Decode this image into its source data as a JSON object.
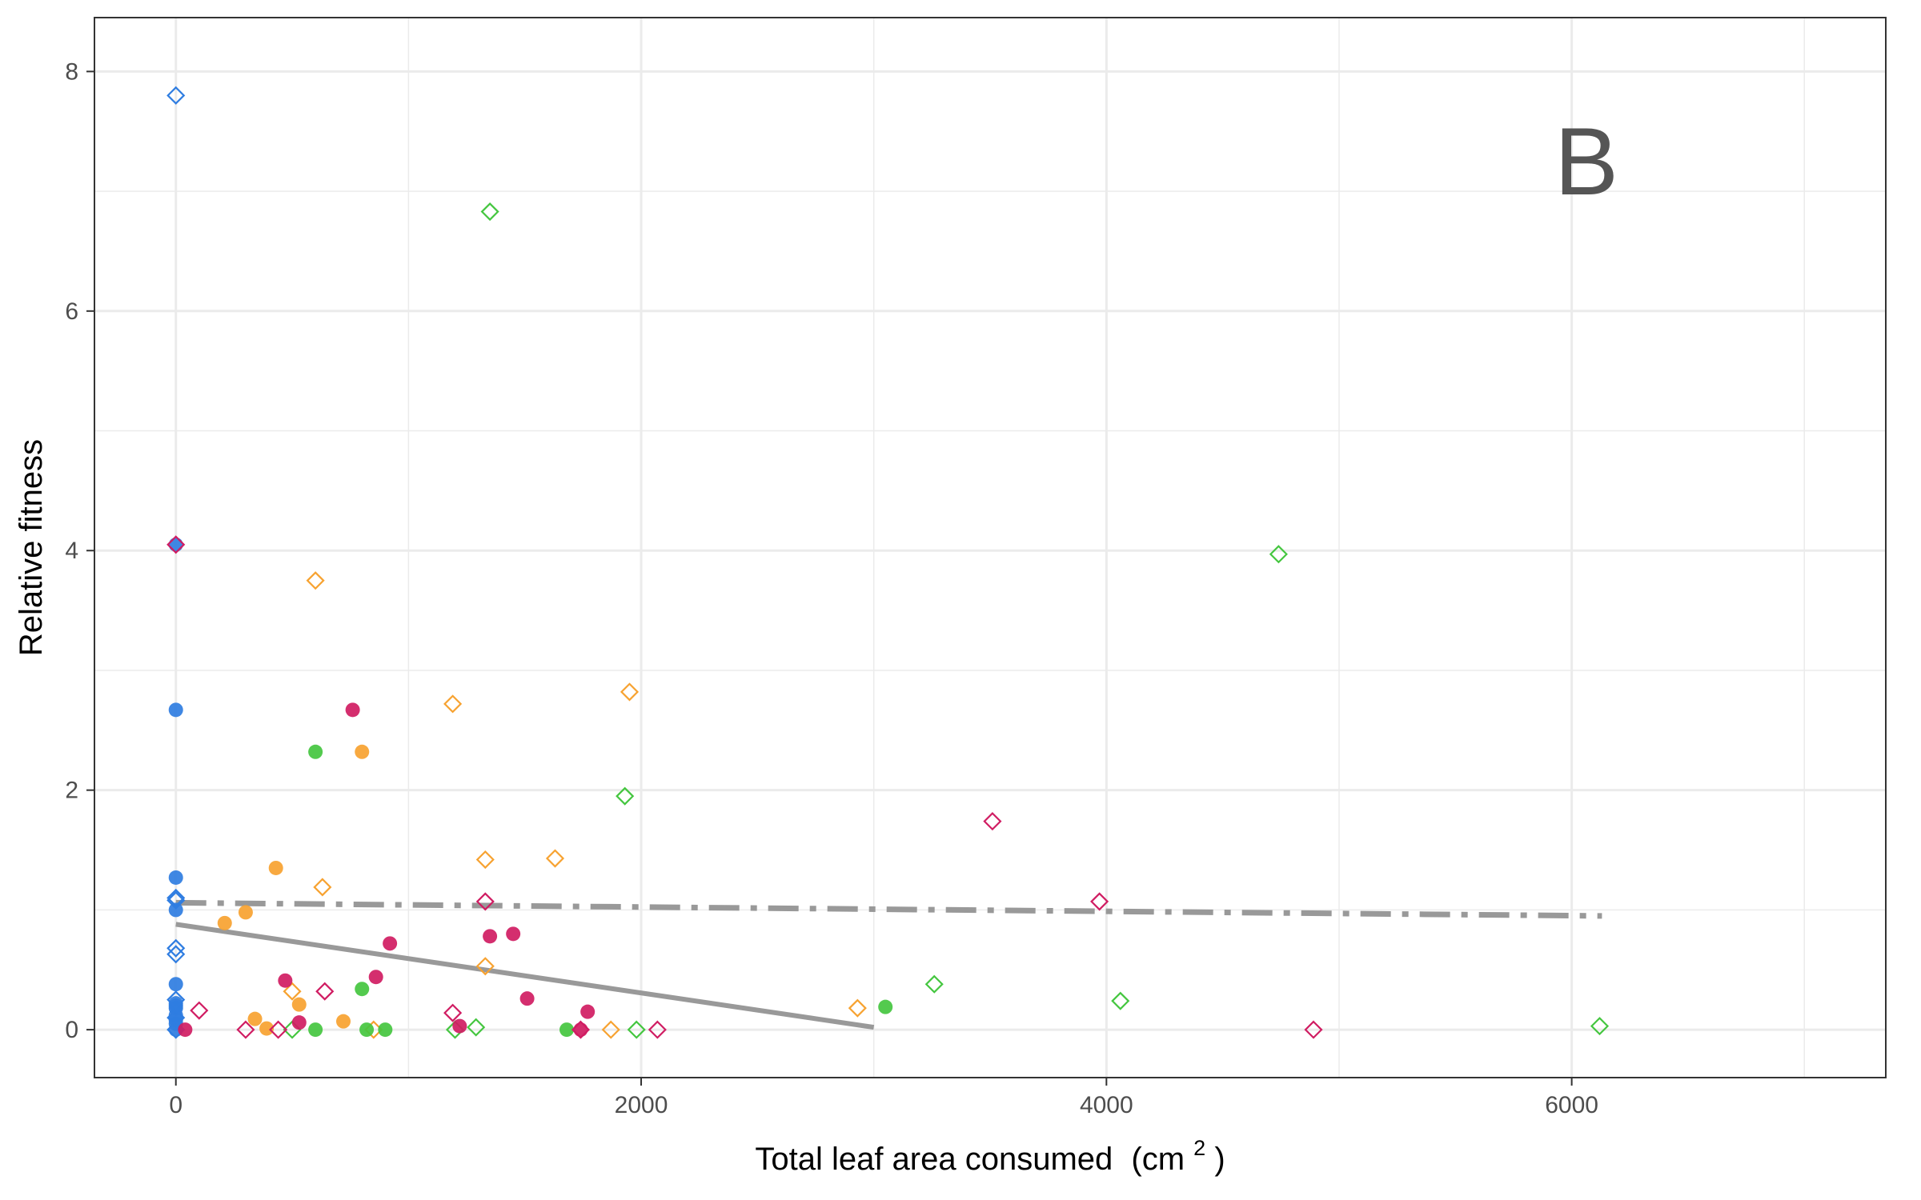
{
  "chart_data": {
    "type": "scatter",
    "title": "",
    "panel_label": "B",
    "xlabel": "Total leaf area consumed",
    "xlabel_unit": "(cm",
    "xlabel_unit_sup": "2",
    "xlabel_unit_close": ")",
    "ylabel": "Relative fitness",
    "xlim": [
      -350,
      7350
    ],
    "ylim": [
      -0.4,
      8.45
    ],
    "x_ticks": [
      0,
      2000,
      4000,
      6000
    ],
    "x_tick_labels": [
      "0",
      "2000",
      "4000",
      "6000"
    ],
    "x_minor_ticks": [
      1000,
      3000,
      5000,
      7000
    ],
    "y_ticks": [
      0,
      2,
      4,
      6,
      8
    ],
    "y_tick_labels": [
      "0",
      "2",
      "4",
      "6",
      "8"
    ],
    "y_minor_ticks": [
      1,
      3,
      5,
      7
    ],
    "grid": true,
    "legend": "none",
    "colors": {
      "blue": "#2f7de1",
      "orange": "#f7a230",
      "green": "#44c63f",
      "magenta": "#d01c62",
      "line": "#999999",
      "grid": "#ebebeb",
      "frame": "#333333"
    },
    "series": [
      {
        "color": "blue",
        "marker": "circle-filled",
        "points": [
          [
            0,
            0.0
          ],
          [
            0,
            0.05
          ],
          [
            0,
            0.08
          ],
          [
            0,
            0.12
          ],
          [
            0,
            0.18
          ],
          [
            0,
            0.2
          ],
          [
            0,
            0.22
          ],
          [
            0,
            0.38
          ],
          [
            0,
            1.0
          ],
          [
            0,
            1.27
          ],
          [
            0,
            2.67
          ],
          [
            0,
            4.05
          ]
        ]
      },
      {
        "color": "blue",
        "marker": "diamond-open",
        "points": [
          [
            0,
            0.0
          ],
          [
            0,
            0.1
          ],
          [
            0,
            0.25
          ],
          [
            0,
            0.63
          ],
          [
            0,
            0.68
          ],
          [
            0,
            1.08
          ],
          [
            0,
            1.1
          ],
          [
            0,
            7.8
          ]
        ]
      },
      {
        "color": "orange",
        "marker": "circle-filled",
        "points": [
          [
            210,
            0.89
          ],
          [
            300,
            0.98
          ],
          [
            340,
            0.09
          ],
          [
            390,
            0.01
          ],
          [
            430,
            1.35
          ],
          [
            530,
            0.21
          ],
          [
            720,
            0.07
          ],
          [
            800,
            2.32
          ]
        ]
      },
      {
        "color": "orange",
        "marker": "diamond-open",
        "points": [
          [
            500,
            0.32
          ],
          [
            600,
            3.75
          ],
          [
            630,
            1.19
          ],
          [
            850,
            0.0
          ],
          [
            1190,
            2.72
          ],
          [
            1330,
            1.42
          ],
          [
            1330,
            0.53
          ],
          [
            1630,
            1.43
          ],
          [
            1870,
            0.0
          ],
          [
            1950,
            2.82
          ],
          [
            2930,
            0.18
          ]
        ]
      },
      {
        "color": "green",
        "marker": "circle-filled",
        "points": [
          [
            600,
            2.32
          ],
          [
            600,
            0.0
          ],
          [
            800,
            0.34
          ],
          [
            820,
            0.0
          ],
          [
            900,
            0.0
          ],
          [
            1680,
            0.0
          ],
          [
            3050,
            0.19
          ]
        ]
      },
      {
        "color": "green",
        "marker": "diamond-open",
        "points": [
          [
            500,
            0.0
          ],
          [
            1200,
            0.0
          ],
          [
            1290,
            0.02
          ],
          [
            1350,
            6.83
          ],
          [
            1930,
            1.95
          ],
          [
            1980,
            0.0
          ],
          [
            3260,
            0.38
          ],
          [
            4060,
            0.24
          ],
          [
            4740,
            3.97
          ],
          [
            6120,
            0.03
          ]
        ]
      },
      {
        "color": "magenta",
        "marker": "circle-filled",
        "points": [
          [
            40,
            0.0
          ],
          [
            470,
            0.41
          ],
          [
            530,
            0.06
          ],
          [
            760,
            2.67
          ],
          [
            860,
            0.44
          ],
          [
            920,
            0.72
          ],
          [
            1220,
            0.03
          ],
          [
            1350,
            0.78
          ],
          [
            1450,
            0.8
          ],
          [
            1510,
            0.26
          ],
          [
            1740,
            0.0
          ],
          [
            1770,
            0.15
          ]
        ]
      },
      {
        "color": "magenta",
        "marker": "diamond-open",
        "points": [
          [
            0,
            4.05
          ],
          [
            100,
            0.16
          ],
          [
            300,
            0.0
          ],
          [
            440,
            0.0
          ],
          [
            640,
            0.32
          ],
          [
            1190,
            0.14
          ],
          [
            1330,
            1.07
          ],
          [
            1740,
            0.0
          ],
          [
            2070,
            0.0
          ],
          [
            3510,
            1.74
          ],
          [
            3970,
            1.07
          ],
          [
            4890,
            0.0
          ]
        ]
      }
    ],
    "lines": [
      {
        "style": "solid",
        "color": "line",
        "x": [
          0,
          3000
        ],
        "y": [
          0.88,
          0.02
        ]
      },
      {
        "style": "dashdot",
        "color": "line",
        "x": [
          0,
          6130
        ],
        "y": [
          1.06,
          0.95
        ]
      }
    ]
  }
}
